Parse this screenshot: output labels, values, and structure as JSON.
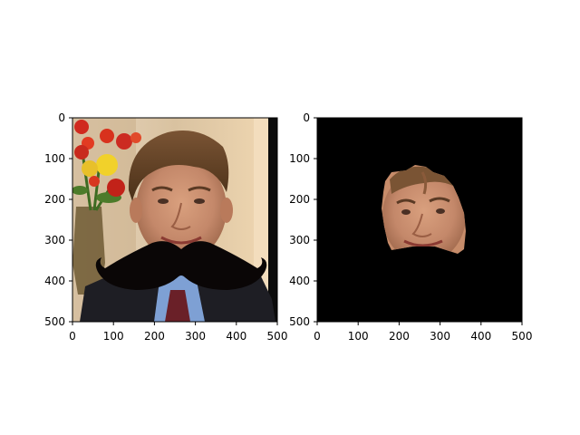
{
  "figure": {
    "background": "#ffffff",
    "panels": [
      {
        "name": "original-with-mustache",
        "x_ticks": [
          "0",
          "100",
          "200",
          "300",
          "400",
          "500"
        ],
        "y_ticks": [
          "0",
          "100",
          "200",
          "300",
          "400",
          "500"
        ],
        "x_range": [
          0,
          500
        ],
        "y_range": [
          0,
          500
        ],
        "content": "photo of man in suit with black mustache overlay, flowers in vase at left"
      },
      {
        "name": "masked-face",
        "x_ticks": [
          "0",
          "100",
          "200",
          "300",
          "400",
          "500"
        ],
        "y_ticks": [
          "0",
          "100",
          "200",
          "300",
          "400",
          "500"
        ],
        "x_range": [
          0,
          500
        ],
        "y_range": [
          0,
          500
        ],
        "content": "black background with only the face region visible, mouth area blacked out"
      }
    ],
    "colors": {
      "mustache": "#0a0606",
      "masked_background": "#000000",
      "axis": "#000000"
    }
  }
}
